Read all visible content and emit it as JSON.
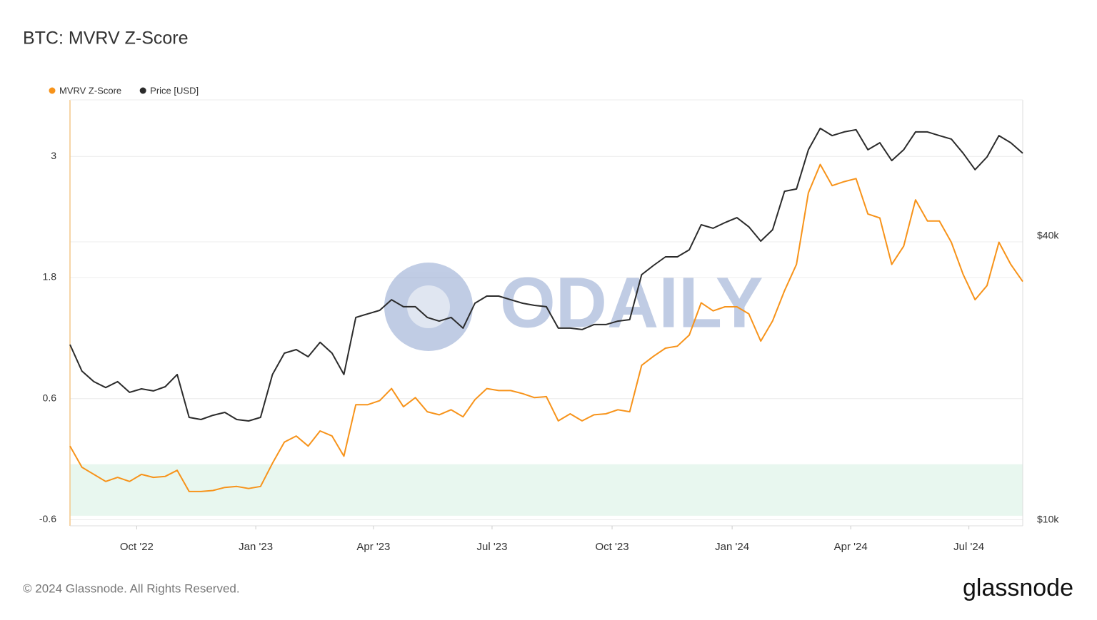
{
  "chart_data": {
    "type": "line",
    "title": "BTC: MVRV Z-Score",
    "footer": "© 2024 Glassnode. All Rights Reserved.",
    "brand": "glassnode",
    "watermark": "ODAILY",
    "x": [
      2022.61,
      2022.635,
      2022.66,
      2022.685,
      2022.71,
      2022.735,
      2022.76,
      2022.785,
      2022.81,
      2022.835,
      2022.86,
      2022.885,
      2022.91,
      2022.935,
      2022.96,
      2022.985,
      2023.01,
      2023.035,
      2023.06,
      2023.085,
      2023.11,
      2023.135,
      2023.16,
      2023.185,
      2023.21,
      2023.235,
      2023.26,
      2023.285,
      2023.31,
      2023.335,
      2023.36,
      2023.385,
      2023.41,
      2023.435,
      2023.46,
      2023.485,
      2023.51,
      2023.535,
      2023.56,
      2023.585,
      2023.61,
      2023.635,
      2023.66,
      2023.685,
      2023.71,
      2023.735,
      2023.76,
      2023.785,
      2023.81,
      2023.835,
      2023.86,
      2023.885,
      2023.91,
      2023.935,
      2023.96,
      2023.985,
      2024.01,
      2024.035,
      2024.06,
      2024.085,
      2024.11,
      2024.135,
      2024.16,
      2024.185,
      2024.21,
      2024.235,
      2024.26,
      2024.285,
      2024.31,
      2024.335,
      2024.36,
      2024.385,
      2024.41,
      2024.435,
      2024.46,
      2024.485,
      2024.51,
      2024.535,
      2024.56,
      2024.585,
      2024.61
    ],
    "series": [
      {
        "name": "MVRV Z-Score",
        "color": "#f7931a",
        "axis": "y",
        "values": [
          0.13,
          -0.08,
          -0.15,
          -0.22,
          -0.18,
          -0.22,
          -0.15,
          -0.18,
          -0.17,
          -0.11,
          -0.32,
          -0.32,
          -0.31,
          -0.28,
          -0.27,
          -0.29,
          -0.27,
          -0.04,
          0.17,
          0.23,
          0.13,
          0.28,
          0.23,
          0.03,
          0.54,
          0.54,
          0.58,
          0.7,
          0.52,
          0.61,
          0.47,
          0.44,
          0.49,
          0.42,
          0.59,
          0.7,
          0.68,
          0.68,
          0.65,
          0.61,
          0.62,
          0.38,
          0.45,
          0.38,
          0.44,
          0.45,
          0.49,
          0.47,
          0.93,
          1.02,
          1.1,
          1.12,
          1.23,
          1.55,
          1.47,
          1.51,
          1.51,
          1.44,
          1.17,
          1.37,
          1.67,
          1.93,
          2.64,
          2.92,
          2.71,
          2.75,
          2.78,
          2.43,
          2.39,
          1.93,
          2.11,
          2.57,
          2.36,
          2.36,
          2.15,
          1.83,
          1.58,
          1.72,
          2.15,
          1.93,
          1.76
        ]
      },
      {
        "name": "Price [USD]",
        "color": "#2b2b2b",
        "axis": "y2",
        "values": [
          23560,
          20700,
          19660,
          19100,
          19660,
          18660,
          18980,
          18790,
          19180,
          20360,
          16510,
          16340,
          16680,
          16920,
          16340,
          16230,
          16510,
          20360,
          22590,
          22990,
          22200,
          23820,
          22590,
          20360,
          26900,
          27370,
          27840,
          29330,
          28340,
          28340,
          26900,
          26420,
          26900,
          25530,
          28830,
          29850,
          29850,
          29330,
          28830,
          28530,
          28340,
          25530,
          25530,
          25350,
          25980,
          25980,
          26420,
          26610,
          33140,
          34680,
          36150,
          36150,
          37430,
          42290,
          41570,
          42730,
          43780,
          41860,
          39040,
          41270,
          49800,
          50350,
          60980,
          67700,
          65340,
          66540,
          67270,
          60980,
          63110,
          57850,
          60980,
          66540,
          66540,
          65340,
          64260,
          59960,
          55330,
          58880,
          65340,
          63110,
          59960
        ]
      }
    ],
    "xlim": [
      2022.61,
      2024.61
    ],
    "xticks": [
      {
        "value": 2022.75,
        "label": "Oct '22"
      },
      {
        "value": 2023.0,
        "label": "Jan '23"
      },
      {
        "value": 2023.247,
        "label": "Apr '23"
      },
      {
        "value": 2023.496,
        "label": "Jul '23"
      },
      {
        "value": 2023.748,
        "label": "Oct '23"
      },
      {
        "value": 2024.0,
        "label": "Jan '24"
      },
      {
        "value": 2024.249,
        "label": "Apr '24"
      },
      {
        "value": 2024.497,
        "label": "Jul '24"
      }
    ],
    "ylim": [
      -0.66,
      3.56
    ],
    "yticks": [
      -0.6,
      0.6,
      1.8,
      3
    ],
    "y2lim": [
      9725,
      77800
    ],
    "y2_log": true,
    "y2ticks": [
      {
        "value": 10000,
        "label": "$10k"
      },
      {
        "value": 40000,
        "label": "$40k"
      }
    ],
    "grid": true,
    "band": {
      "from": -0.56,
      "to": -0.05,
      "color": "#e8f7ef"
    },
    "legend": "top-left"
  }
}
